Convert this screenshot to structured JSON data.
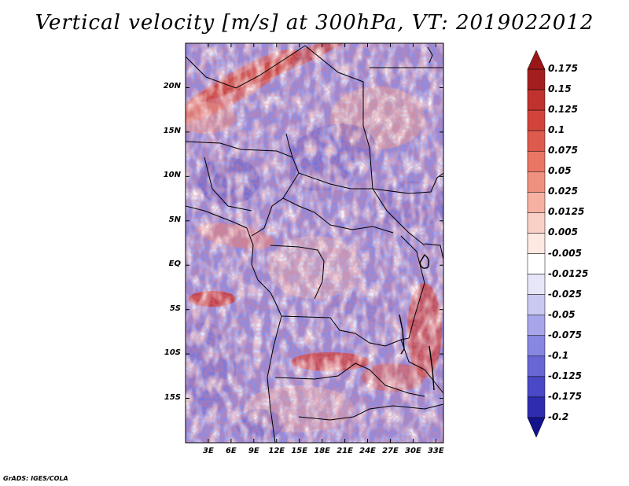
{
  "title": "Vertical velocity [m/s] at 300hPa, VT: 2019022012",
  "chart_data": {
    "type": "heatmap",
    "variable": "Vertical velocity",
    "units": "m/s",
    "level": "300hPa",
    "valid_time": "2019022012",
    "lat_ticks": [
      "20N",
      "15N",
      "10N",
      "5N",
      "EQ",
      "5S",
      "10S",
      "15S"
    ],
    "lat_values": [
      20,
      15,
      10,
      5,
      0,
      -5,
      -10,
      -15
    ],
    "lon_ticks": [
      "3E",
      "6E",
      "9E",
      "12E",
      "15E",
      "18E",
      "21E",
      "24E",
      "27E",
      "30E",
      "33E"
    ],
    "lon_values": [
      3,
      6,
      9,
      12,
      15,
      18,
      21,
      24,
      27,
      30,
      33
    ],
    "lat_range": [
      -20,
      25
    ],
    "lon_range": [
      0,
      34
    ],
    "colorbar_labels": [
      "0.175",
      "0.15",
      "0.125",
      "0.1",
      "0.075",
      "0.05",
      "0.025",
      "0.0125",
      "0.005",
      "-0.005",
      "-0.0125",
      "-0.025",
      "-0.05",
      "-0.075",
      "-0.1",
      "-0.125",
      "-0.175",
      "-0.2"
    ],
    "colorbar_colors": [
      "#a51e1e",
      "#c0322d",
      "#d2433b",
      "#df5a4e",
      "#e97565",
      "#f0917f",
      "#f6b1a3",
      "#fad0c6",
      "#fde8e2",
      "#ffffff",
      "#e6e6f8",
      "#c9c9f2",
      "#a7a6ea",
      "#8786e0",
      "#6866d4",
      "#4a48c6",
      "#2f2cb2",
      "#1a179b"
    ],
    "colorbar_top_color": "#9b1717",
    "colorbar_bottom_color": "#15128e"
  },
  "credit": "GrADS: IGES/COLA"
}
